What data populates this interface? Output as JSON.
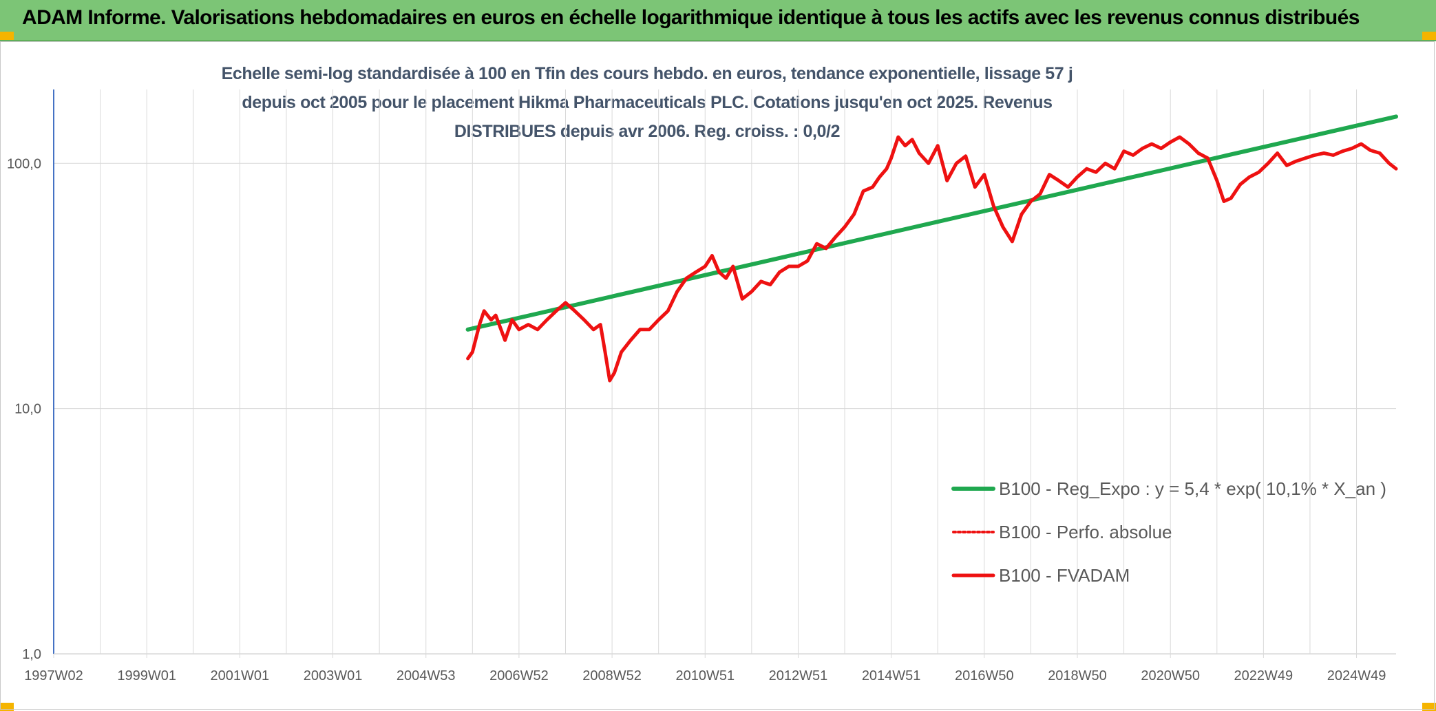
{
  "banner": {
    "title": "ADAM Informe. Valorisations hebdomadaires en euros en échelle logarithmique identique à tous les actifs avec les revenus connus distribués"
  },
  "colors": {
    "banner": "#7cc576",
    "regression": "#1fa84f",
    "fvadam": "#ee1111",
    "perfo": "#ee1111",
    "grid": "#d9d9d9",
    "axis": "#4472c4"
  },
  "chart_data": {
    "type": "line",
    "title": "Echelle semi-log standardisée à 100 en Tfin des cours hebdo. en euros, tendance exponentielle, lissage 57 j depuis oct 2005 pour le placement Hikma Pharmaceuticals PLC. Cotations jusqu'en oct 2025. Revenus DISTRIBUES depuis avr 2006. Reg. croiss. : 0,0/2",
    "y_scale": "log",
    "ylim": [
      1,
      200
    ],
    "xlim": [
      1997.0,
      2025.85
    ],
    "y_ticks": [
      {
        "value": 1,
        "label": "1,0"
      },
      {
        "value": 10,
        "label": "10,0"
      },
      {
        "value": 100,
        "label": "100,0"
      }
    ],
    "x_ticks": [
      {
        "x": 1997.0,
        "label": "1997W02"
      },
      {
        "x": 1999.0,
        "label": "1999W01"
      },
      {
        "x": 2001.0,
        "label": "2001W01"
      },
      {
        "x": 2003.0,
        "label": "2003W01"
      },
      {
        "x": 2005.0,
        "label": "2004W53"
      },
      {
        "x": 2007.0,
        "label": "2006W52"
      },
      {
        "x": 2009.0,
        "label": "2008W52"
      },
      {
        "x": 2011.0,
        "label": "2010W51"
      },
      {
        "x": 2013.0,
        "label": "2012W51"
      },
      {
        "x": 2015.0,
        "label": "2014W51"
      },
      {
        "x": 2017.0,
        "label": "2016W50"
      },
      {
        "x": 2019.0,
        "label": "2018W50"
      },
      {
        "x": 2021.0,
        "label": "2020W50"
      },
      {
        "x": 2023.0,
        "label": "2022W49"
      },
      {
        "x": 2025.0,
        "label": "2024W49"
      }
    ],
    "grid": true,
    "legend_position": "bottom-right",
    "series": [
      {
        "name": "B100 - Reg_Expo : y = 5,4 * exp( 10,1% *  X_an )",
        "style": "solid",
        "color": "#1fa84f",
        "x": [
          2005.9,
          2025.85
        ],
        "y": [
          21,
          155
        ]
      },
      {
        "name": "B100 - Perfo. absolue",
        "style": "dotted",
        "color": "#ee1111",
        "x": [],
        "y": []
      },
      {
        "name": "B100 - FVADAM",
        "style": "solid",
        "color": "#ee1111",
        "x": [
          2005.9,
          2006.0,
          2006.15,
          2006.25,
          2006.4,
          2006.5,
          2006.7,
          2006.85,
          2007.0,
          2007.2,
          2007.4,
          2007.6,
          2007.8,
          2008.0,
          2008.2,
          2008.4,
          2008.6,
          2008.75,
          2008.85,
          2008.95,
          2009.05,
          2009.2,
          2009.4,
          2009.6,
          2009.8,
          2010.0,
          2010.2,
          2010.4,
          2010.6,
          2010.8,
          2011.0,
          2011.15,
          2011.3,
          2011.45,
          2011.6,
          2011.8,
          2012.0,
          2012.2,
          2012.4,
          2012.6,
          2012.8,
          2013.0,
          2013.2,
          2013.4,
          2013.6,
          2013.8,
          2014.0,
          2014.2,
          2014.4,
          2014.6,
          2014.75,
          2014.9,
          2015.0,
          2015.15,
          2015.3,
          2015.45,
          2015.6,
          2015.8,
          2016.0,
          2016.2,
          2016.4,
          2016.6,
          2016.8,
          2017.0,
          2017.2,
          2017.4,
          2017.6,
          2017.8,
          2018.0,
          2018.2,
          2018.4,
          2018.6,
          2018.8,
          2019.0,
          2019.2,
          2019.4,
          2019.6,
          2019.8,
          2020.0,
          2020.2,
          2020.4,
          2020.6,
          2020.8,
          2021.0,
          2021.2,
          2021.4,
          2021.6,
          2021.8,
          2022.0,
          2022.15,
          2022.3,
          2022.5,
          2022.7,
          2022.9,
          2023.1,
          2023.3,
          2023.5,
          2023.7,
          2023.9,
          2024.1,
          2024.3,
          2024.5,
          2024.7,
          2024.9,
          2025.1,
          2025.3,
          2025.5,
          2025.7,
          2025.85
        ],
        "y": [
          16,
          17,
          22,
          25,
          23,
          24,
          19,
          23,
          21,
          22,
          21,
          23,
          25,
          27,
          25,
          23,
          21,
          22,
          17,
          13,
          14,
          17,
          19,
          21,
          21,
          23,
          25,
          30,
          34,
          36,
          38,
          42,
          36,
          34,
          38,
          28,
          30,
          33,
          32,
          36,
          38,
          38,
          40,
          47,
          45,
          50,
          55,
          62,
          77,
          80,
          88,
          95,
          105,
          128,
          118,
          125,
          110,
          100,
          118,
          85,
          100,
          107,
          80,
          90,
          67,
          55,
          48,
          62,
          70,
          75,
          90,
          85,
          80,
          88,
          95,
          92,
          100,
          95,
          112,
          108,
          115,
          120,
          115,
          122,
          128,
          120,
          110,
          105,
          85,
          70,
          72,
          82,
          88,
          92,
          100,
          110,
          98,
          102,
          105,
          108,
          110,
          108,
          112,
          115,
          120,
          113,
          110,
          100,
          95
        ]
      }
    ]
  }
}
